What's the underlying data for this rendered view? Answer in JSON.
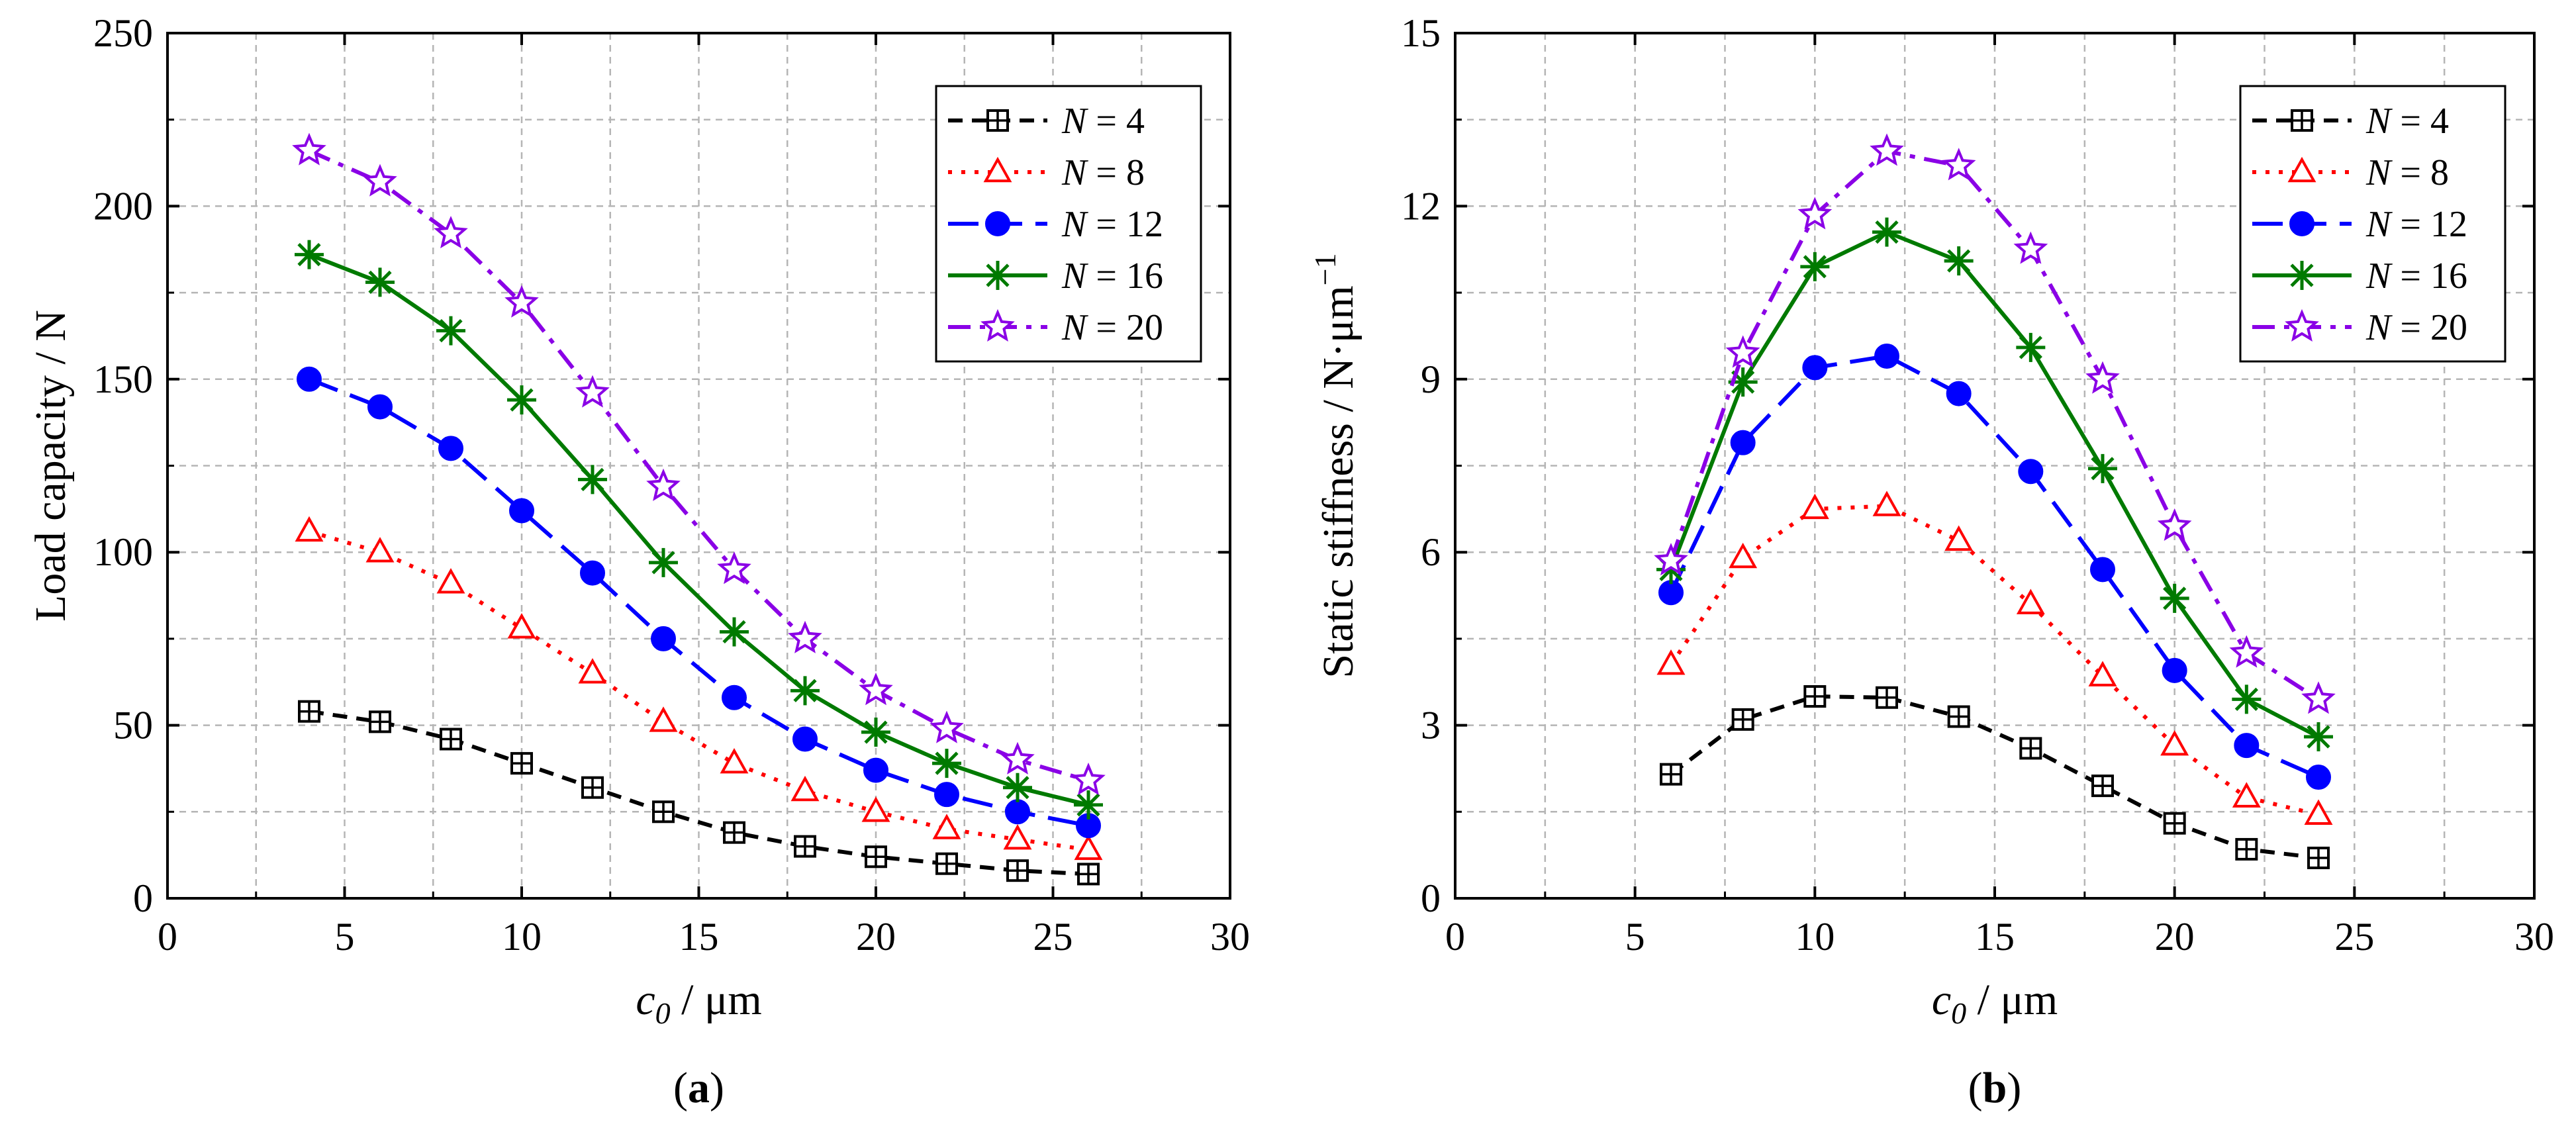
{
  "chart_data": [
    {
      "panel_label": "(a)",
      "type": "line",
      "xlabel": "c0 / μm",
      "xlabel_parts": {
        "var": "c",
        "sub": "0",
        "rest": " / μm"
      },
      "ylabel": "Load capacity / N",
      "xlim": [
        0,
        30
      ],
      "ylim": [
        0,
        250
      ],
      "xticks": [
        0,
        5,
        10,
        15,
        20,
        25,
        30
      ],
      "yticks": [
        0,
        50,
        100,
        150,
        200,
        250
      ],
      "grid": true,
      "legend_position": "top-right",
      "series": [
        {
          "name": "N = 4",
          "name_var": "N",
          "name_val": " = 4",
          "color": "#000000",
          "marker": "square-plus",
          "dash": "dash",
          "x": [
            4,
            6,
            8,
            10,
            12,
            14,
            16,
            18,
            20,
            22,
            24,
            26
          ],
          "y": [
            54,
            51,
            46,
            39,
            32,
            25,
            19,
            15,
            12,
            10,
            8,
            7
          ]
        },
        {
          "name": "N = 8",
          "name_var": "N",
          "name_val": " = 8",
          "color": "#ff0000",
          "marker": "triangle",
          "dash": "dot",
          "x": [
            4,
            6,
            8,
            10,
            12,
            14,
            16,
            18,
            20,
            22,
            24,
            26
          ],
          "y": [
            106,
            100,
            91,
            78,
            65,
            51,
            39,
            31,
            25,
            20,
            17,
            14
          ]
        },
        {
          "name": "N = 12",
          "name_var": "N",
          "name_val": " = 12",
          "color": "#0000ff",
          "marker": "circle",
          "dash": "longdash",
          "x": [
            4,
            6,
            8,
            10,
            12,
            14,
            16,
            18,
            20,
            22,
            24,
            26
          ],
          "y": [
            150,
            142,
            130,
            112,
            94,
            75,
            58,
            46,
            37,
            30,
            25,
            21
          ]
        },
        {
          "name": "N = 16",
          "name_var": "N",
          "name_val": " = 16",
          "color": "#007a00",
          "marker": "asterisk",
          "dash": "solid",
          "x": [
            4,
            6,
            8,
            10,
            12,
            14,
            16,
            18,
            20,
            22,
            24,
            26
          ],
          "y": [
            186,
            178,
            164,
            144,
            121,
            97,
            77,
            60,
            48,
            39,
            32,
            27
          ]
        },
        {
          "name": "N = 20",
          "name_var": "N",
          "name_val": " = 20",
          "color": "#8a00e6",
          "marker": "star",
          "dash": "dashdot",
          "x": [
            4,
            6,
            8,
            10,
            12,
            14,
            16,
            18,
            20,
            22,
            24,
            26
          ],
          "y": [
            216,
            207,
            192,
            172,
            146,
            119,
            95,
            75,
            60,
            49,
            40,
            34
          ]
        }
      ]
    },
    {
      "panel_label": "(b)",
      "type": "line",
      "xlabel": "c0 / μm",
      "xlabel_parts": {
        "var": "c",
        "sub": "0",
        "rest": " / μm"
      },
      "ylabel": "Static stiffness / N·μm−1",
      "ylabel_parts": {
        "main": "Static stiffness / N·μm",
        "sup": "−1"
      },
      "xlim": [
        0,
        30
      ],
      "ylim": [
        0,
        15
      ],
      "xticks": [
        0,
        5,
        10,
        15,
        20,
        25,
        30
      ],
      "yticks": [
        0,
        3,
        6,
        9,
        12,
        15
      ],
      "grid": true,
      "legend_position": "top-right",
      "series": [
        {
          "name": "N = 4",
          "name_var": "N",
          "name_val": " = 4",
          "color": "#000000",
          "marker": "square-plus",
          "dash": "dash",
          "x": [
            6,
            8,
            10,
            12,
            14,
            16,
            18,
            20,
            22,
            24
          ],
          "y": [
            2.15,
            3.1,
            3.5,
            3.48,
            3.15,
            2.6,
            1.95,
            1.3,
            0.85,
            0.7
          ]
        },
        {
          "name": "N = 8",
          "name_var": "N",
          "name_val": " = 8",
          "color": "#ff0000",
          "marker": "triangle",
          "dash": "dot",
          "x": [
            6,
            8,
            10,
            12,
            14,
            16,
            18,
            20,
            22,
            24
          ],
          "y": [
            4.05,
            5.9,
            6.75,
            6.8,
            6.2,
            5.1,
            3.85,
            2.65,
            1.75,
            1.45
          ]
        },
        {
          "name": "N = 12",
          "name_var": "N",
          "name_val": " = 12",
          "color": "#0000ff",
          "marker": "circle",
          "dash": "longdash",
          "x": [
            6,
            8,
            10,
            12,
            14,
            16,
            18,
            20,
            22,
            24
          ],
          "y": [
            5.3,
            7.9,
            9.2,
            9.4,
            8.75,
            7.4,
            5.7,
            3.95,
            2.65,
            2.1
          ]
        },
        {
          "name": "N = 16",
          "name_var": "N",
          "name_val": " = 16",
          "color": "#007a00",
          "marker": "asterisk",
          "dash": "solid",
          "x": [
            6,
            8,
            10,
            12,
            14,
            16,
            18,
            20,
            22,
            24
          ],
          "y": [
            5.7,
            8.95,
            10.95,
            11.55,
            11.05,
            9.55,
            7.45,
            5.2,
            3.45,
            2.8
          ]
        },
        {
          "name": "N = 20",
          "name_var": "N",
          "name_val": " = 20",
          "color": "#8a00e6",
          "marker": "star",
          "dash": "dashdot",
          "x": [
            6,
            8,
            10,
            12,
            14,
            16,
            18,
            20,
            22,
            24
          ],
          "y": [
            5.85,
            9.45,
            11.85,
            12.95,
            12.7,
            11.25,
            9.0,
            6.45,
            4.25,
            3.45
          ]
        }
      ]
    }
  ]
}
